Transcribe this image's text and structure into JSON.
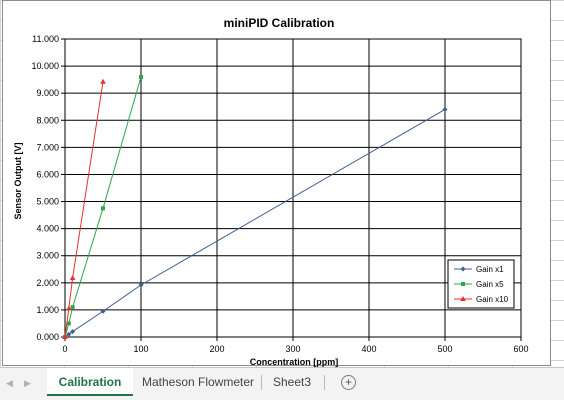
{
  "chart_data": {
    "type": "line",
    "title": "miniPID Calibration",
    "xlabel": "Concentration [ppm]",
    "ylabel": "Sensor Output [V]",
    "xlim": [
      0,
      600
    ],
    "ylim": [
      0,
      11
    ],
    "x_ticks": [
      "0",
      "100",
      "200",
      "300",
      "400",
      "500",
      "600"
    ],
    "y_ticks": [
      "0.000",
      "1.000",
      "2.000",
      "3.000",
      "4.000",
      "5.000",
      "6.000",
      "7.000",
      "8.000",
      "9.000",
      "10.000",
      "11.000"
    ],
    "grid": true,
    "legend_position": "bottom-right",
    "series": [
      {
        "name": "Gain x1",
        "color": "#3f5f8f",
        "marker": "diamond",
        "points": [
          [
            0,
            0.0
          ],
          [
            5,
            0.1
          ],
          [
            10,
            0.2
          ],
          [
            50,
            0.95
          ],
          [
            100,
            1.92
          ],
          [
            500,
            8.4
          ]
        ]
      },
      {
        "name": "Gain x5",
        "color": "#2aa84a",
        "marker": "square",
        "points": [
          [
            0,
            0.0
          ],
          [
            5,
            0.5
          ],
          [
            10,
            1.1
          ],
          [
            50,
            4.75
          ],
          [
            100,
            9.6
          ]
        ]
      },
      {
        "name": "Gain x10",
        "color": "#e53030",
        "marker": "triangle",
        "points": [
          [
            0,
            0.0
          ],
          [
            5,
            1.05
          ],
          [
            10,
            2.18
          ],
          [
            50,
            9.42
          ]
        ]
      }
    ]
  },
  "tabs": {
    "items": [
      {
        "label": "Calibration"
      },
      {
        "label": "Matheson Flowmeter"
      },
      {
        "label": "Sheet3"
      }
    ],
    "add_label": "+",
    "nav_prev": "◀",
    "nav_next": "▶"
  }
}
